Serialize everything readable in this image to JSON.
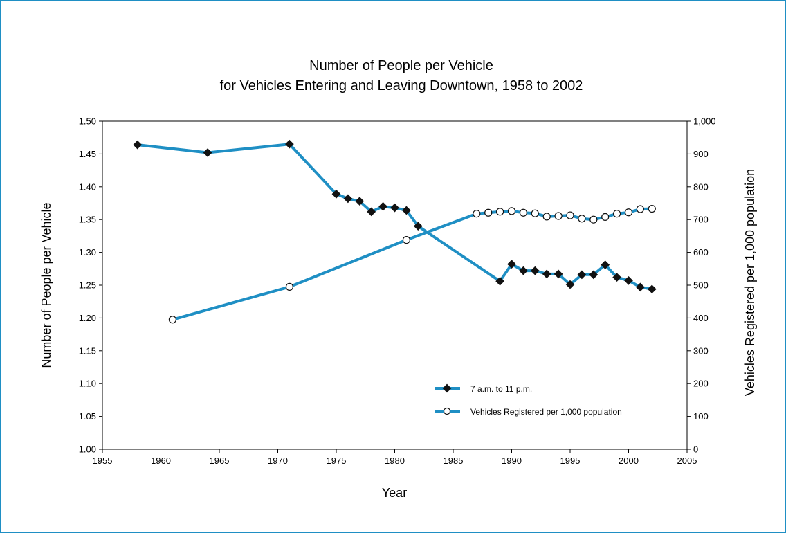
{
  "chart_data": {
    "type": "line",
    "title": "Number of People per Vehicle",
    "subtitle": "for Vehicles Entering and Leaving Downtown, 1958 to 2002",
    "xlabel": "Year",
    "ylabel": "Number of People per Vehicle",
    "y2label": "Vehicles Registered per 1,000 population",
    "xlim": [
      1955,
      2005
    ],
    "ylim": [
      1.0,
      1.5
    ],
    "y2lim": [
      0,
      1000
    ],
    "x_ticks": [
      "1955",
      "1960",
      "1965",
      "1970",
      "1975",
      "1980",
      "1985",
      "1990",
      "1995",
      "2000",
      "2005"
    ],
    "y_ticks": [
      "1.00",
      "1.05",
      "1.10",
      "1.15",
      "1.20",
      "1.25",
      "1.30",
      "1.35",
      "1.40",
      "1.45",
      "1.50"
    ],
    "y2_ticks": [
      "0",
      "100",
      "200",
      "300",
      "400",
      "500",
      "600",
      "700",
      "800",
      "900",
      "1,000"
    ],
    "grid": false,
    "legend_position": "bottom-right",
    "line_color": "#1f8fc4",
    "series": [
      {
        "name": "7 a.m. to 11 p.m.",
        "axis": "left",
        "marker": "diamond",
        "x": [
          1958,
          1964,
          1971,
          1975,
          1976,
          1977,
          1978,
          1979,
          1980,
          1981,
          1982,
          1989,
          1990,
          1991,
          1992,
          1993,
          1994,
          1995,
          1996,
          1997,
          1998,
          1999,
          2000,
          2001,
          2002
        ],
        "y": [
          1.464,
          1.452,
          1.465,
          1.389,
          1.382,
          1.378,
          1.362,
          1.37,
          1.368,
          1.364,
          1.34,
          1.256,
          1.282,
          1.272,
          1.272,
          1.267,
          1.267,
          1.251,
          1.266,
          1.266,
          1.281,
          1.262,
          1.257,
          1.247,
          1.244
        ]
      },
      {
        "name": "Vehicles Registered per 1,000 population",
        "axis": "right",
        "marker": "circle",
        "x": [
          1961,
          1971,
          1981,
          1987,
          1988,
          1989,
          1990,
          1991,
          1992,
          1993,
          1994,
          1995,
          1996,
          1997,
          1998,
          1999,
          2000,
          2001,
          2002
        ],
        "y": [
          395,
          495,
          638,
          718,
          721,
          724,
          726,
          721,
          719,
          709,
          711,
          713,
          703,
          700,
          708,
          718,
          722,
          732,
          733
        ]
      }
    ]
  }
}
